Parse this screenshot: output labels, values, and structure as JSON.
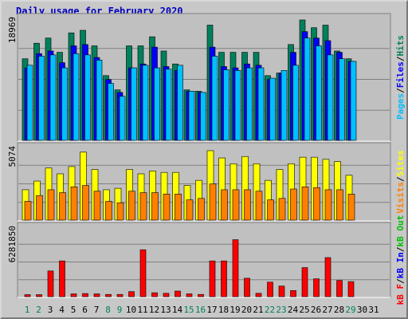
{
  "title": "Daily usage for February 2020",
  "colors": {
    "hits": "#00805c",
    "files": "#0000ff",
    "pages": "#00c0ff",
    "visits": "#ffff00",
    "sites": "#ff8000",
    "kbin": "#0000ff",
    "kbout": "#00c000",
    "kbf": "#ff0000",
    "panel": "#c0c0c0",
    "grid": "#808080",
    "weekend": "#00805c",
    "weekday": "#000000"
  },
  "chart_data": [
    {
      "type": "bar",
      "name_key": "top",
      "categories": [
        1,
        2,
        3,
        4,
        5,
        6,
        7,
        8,
        9,
        10,
        11,
        12,
        13,
        14,
        15,
        16,
        17,
        18,
        19,
        20,
        21,
        22,
        23,
        24,
        25,
        26,
        27,
        28,
        29,
        30,
        31
      ],
      "weekend_days": [
        1,
        2,
        8,
        9,
        15,
        16,
        22,
        23,
        29
      ],
      "ylabel_parts": [
        "Pages",
        "/",
        "Files",
        "/",
        "Hits"
      ],
      "ytick": "18969",
      "ymax": 18969,
      "series": [
        {
          "name": "Hits",
          "values": [
            12600,
            15000,
            15800,
            13600,
            16600,
            17000,
            14600,
            10000,
            7800,
            14600,
            14600,
            16000,
            13800,
            11800,
            7800,
            7600,
            17800,
            13600,
            13600,
            13600,
            13600,
            10000,
            10400,
            14800,
            18600,
            17400,
            17800,
            13800,
            12600,
            0,
            0
          ]
        },
        {
          "name": "Files",
          "values": [
            11200,
            13400,
            13800,
            12000,
            14600,
            14800,
            12800,
            9400,
            7400,
            11200,
            11800,
            14400,
            11400,
            10800,
            7600,
            7400,
            14400,
            11400,
            11200,
            11800,
            11600,
            9400,
            10400,
            13600,
            16800,
            15800,
            15400,
            13600,
            12200,
            0,
            0
          ]
        },
        {
          "name": "Pages",
          "values": [
            11600,
            13000,
            13200,
            11200,
            13400,
            13200,
            12400,
            8800,
            6800,
            11200,
            11600,
            11200,
            11000,
            11600,
            7600,
            7400,
            13000,
            10900,
            10800,
            11200,
            11200,
            9600,
            10800,
            11600,
            15800,
            14600,
            13200,
            12600,
            12200,
            0,
            0
          ]
        }
      ]
    },
    {
      "type": "bar",
      "name_key": "mid",
      "ylabel_parts": [
        "Visits",
        "/",
        "Sites"
      ],
      "ytick": "5074",
      "ymax": 5074,
      "series": [
        {
          "name": "Visits",
          "values": [
            2100,
            2700,
            3600,
            3200,
            3700,
            4700,
            3500,
            2100,
            2200,
            3500,
            3200,
            3400,
            3300,
            3300,
            2400,
            2750,
            4800,
            4300,
            3900,
            4400,
            3900,
            2750,
            3500,
            3900,
            4350,
            4350,
            4200,
            4050,
            3100,
            0,
            0
          ]
        },
        {
          "name": "Sites",
          "values": [
            1300,
            1700,
            2100,
            1900,
            2300,
            2400,
            2000,
            1300,
            1200,
            2000,
            1900,
            1900,
            1800,
            1800,
            1400,
            1500,
            2500,
            2100,
            2100,
            2100,
            2000,
            1400,
            1500,
            2150,
            2300,
            2250,
            2100,
            2100,
            1800,
            0,
            0
          ]
        }
      ]
    },
    {
      "type": "bar",
      "name_key": "bot",
      "ylabel_parts": [
        "kB F",
        "/",
        "kB In",
        "/",
        "kB Out"
      ],
      "ytick": "6281850",
      "ymax": 6281850,
      "series": [
        {
          "name": "kB F",
          "values": [
            180000,
            180000,
            2300000,
            3200000,
            250000,
            280000,
            250000,
            200000,
            200000,
            450000,
            4200000,
            350000,
            300000,
            500000,
            250000,
            200000,
            3200000,
            3200000,
            5100000,
            1650000,
            300000,
            1300000,
            950000,
            550000,
            2600000,
            1600000,
            3500000,
            1450000,
            1350000,
            0,
            0
          ]
        }
      ]
    }
  ]
}
